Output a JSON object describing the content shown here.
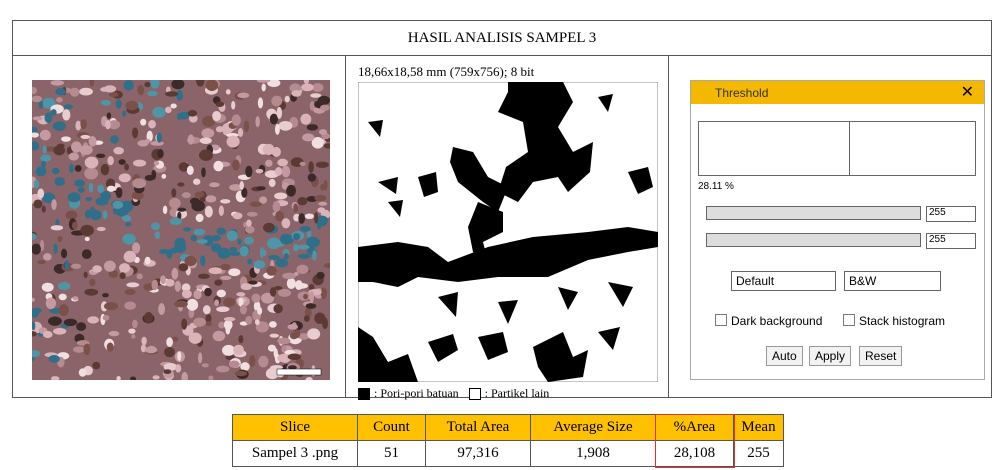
{
  "figure": {
    "title": "HASIL ANALISIS SAMPEL 3",
    "image_caption": "18,66x18,58 mm (759x756); 8 bit",
    "legend": [
      ": Pori-pori batuan",
      ": Partikel lain"
    ]
  },
  "threshold_dialog": {
    "title": "Threshold",
    "percent": "28.11 %",
    "sliders": [
      "255",
      "255"
    ],
    "method": "Default",
    "mode": "B&W",
    "checkboxes": [
      "Dark background",
      "Stack histogram"
    ],
    "buttons": [
      "Auto",
      "Apply",
      "Reset"
    ]
  },
  "table": {
    "header": [
      "Slice",
      "Count",
      "Total Area",
      "Average Size",
      "%Area",
      "Mean"
    ],
    "rows": [
      [
        "Sampel 3 .png",
        "51",
        "97,316",
        "1,908",
        "28,108",
        "255"
      ]
    ]
  }
}
